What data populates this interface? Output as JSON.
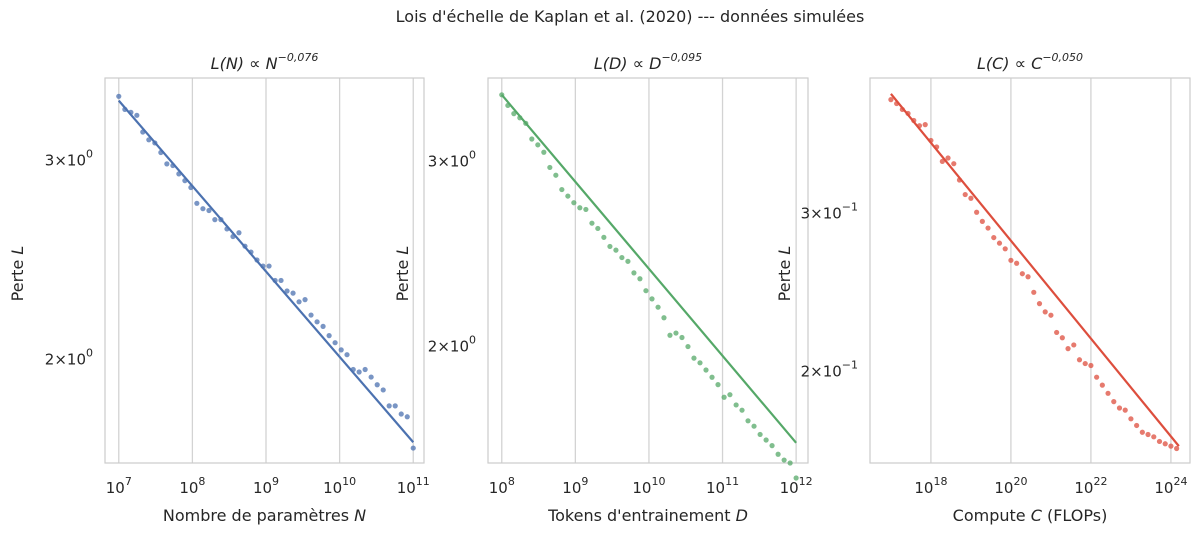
{
  "suptitle": "Lois d'échelle de Kaplan et al. (2020) --- données simulées",
  "chart_data": [
    {
      "type": "scatter",
      "title_base": "L(N) ∝ N",
      "title_exp": "−0,076",
      "xlabel_main": "Nombre de paramètres ",
      "xlabel_var": "N",
      "xlabel_suffix": "",
      "ylabel_main": "Perte ",
      "ylabel_var": "L",
      "xscale": "log",
      "yscale": "log",
      "xlim": [
        6500000.0,
        140000000000.0
      ],
      "ylim": [
        1.62,
        3.55
      ],
      "grid": true,
      "color": "#4c72b0",
      "xticks": [
        {
          "value": 10000000.0,
          "base": "10",
          "exp": "7"
        },
        {
          "value": 100000000.0,
          "base": "10",
          "exp": "8"
        },
        {
          "value": 1000000000.0,
          "base": "10",
          "exp": "9"
        },
        {
          "value": 10000000000.0,
          "base": "10",
          "exp": "10"
        },
        {
          "value": 100000000000.0,
          "base": "10",
          "exp": "11"
        }
      ],
      "yticks": [
        {
          "value": 3.0,
          "mant": "3×10",
          "exp": "0"
        },
        {
          "value": 2.0,
          "mant": "2×10",
          "exp": "0"
        }
      ],
      "fit": {
        "x": [
          10000000.0,
          100000000000.0
        ],
        "y": [
          3.39,
          1.69
        ]
      },
      "series": [
        {
          "type": "scatter",
          "x": [
            10000000.0,
            12100000.0,
            14600000.0,
            17600000.0,
            21200000.0,
            25600000.0,
            30900000.0,
            37300000.0,
            45000000.0,
            54300000.0,
            65500000.0,
            79100000.0,
            95400000.0,
            115000000.0,
            139000000.0,
            168000000.0,
            202000000.0,
            244000000.0,
            295000000.0,
            356000000.0,
            429000000.0,
            518000000.0,
            625000000.0,
            754000000.0,
            910000000.0,
            1100000000.0,
            1330000000.0,
            1600000000.0,
            1930000000.0,
            2330000000.0,
            2810000000.0,
            3390000000.0,
            4090000000.0,
            4940000000.0,
            5960000000.0,
            7200000000.0,
            8680000000.0,
            10500000000.0,
            12600000000.0,
            15300000000.0,
            18400000000.0,
            22200000000.0,
            26800000000.0,
            32400000000.0,
            39100000000.0,
            47100000000.0,
            56900000000.0,
            68700000000.0,
            82900000000.0,
            100000000000.0
          ],
          "y": [
            3.42,
            3.33,
            3.31,
            3.29,
            3.18,
            3.13,
            3.11,
            3.05,
            2.98,
            2.97,
            2.92,
            2.88,
            2.84,
            2.75,
            2.72,
            2.71,
            2.66,
            2.66,
            2.61,
            2.57,
            2.59,
            2.52,
            2.49,
            2.45,
            2.42,
            2.42,
            2.35,
            2.35,
            2.3,
            2.29,
            2.25,
            2.26,
            2.19,
            2.16,
            2.14,
            2.1,
            2.07,
            2.04,
            2.02,
            1.96,
            1.95,
            1.96,
            1.93,
            1.9,
            1.88,
            1.82,
            1.82,
            1.79,
            1.78,
            1.67
          ]
        }
      ]
    },
    {
      "type": "scatter",
      "title_base": "L(D) ∝ D",
      "title_exp": "−0,095",
      "xlabel_main": "Tokens d'entrainement ",
      "xlabel_var": "D",
      "xlabel_suffix": "",
      "ylabel_main": "Perte ",
      "ylabel_var": "L",
      "xscale": "log",
      "yscale": "log",
      "xlim": [
        65000000.0,
        1450000000000.0
      ],
      "ylim": [
        1.55,
        3.6
      ],
      "grid": true,
      "color": "#55a868",
      "xticks": [
        {
          "value": 100000000.0,
          "base": "10",
          "exp": "8"
        },
        {
          "value": 1000000000.0,
          "base": "10",
          "exp": "9"
        },
        {
          "value": 10000000000.0,
          "base": "10",
          "exp": "10"
        },
        {
          "value": 100000000000.0,
          "base": "10",
          "exp": "11"
        },
        {
          "value": 1000000000000.0,
          "base": "10",
          "exp": "12"
        }
      ],
      "yticks": [
        {
          "value": 3.0,
          "mant": "3×10",
          "exp": "0"
        },
        {
          "value": 2.0,
          "mant": "2×10",
          "exp": "0"
        }
      ],
      "fit": {
        "x": [
          100000000.0,
          1000000000000.0
        ],
        "y": [
          3.47,
          1.62
        ]
      },
      "series": [
        {
          "type": "scatter",
          "x": [
            100000000.0,
            121000000.0,
            146000000.0,
            176000000.0,
            212000000.0,
            256000000.0,
            309000000.0,
            373000000.0,
            450000000.0,
            543000000.0,
            655000000.0,
            791000000.0,
            954000000.0,
            1150000000.0,
            1390000000.0,
            1680000000.0,
            2020000000.0,
            2440000000.0,
            2950000000.0,
            3560000000.0,
            4290000000.0,
            5180000000.0,
            6250000000.0,
            7540000000.0,
            9100000000.0,
            11000000000.0,
            13300000000.0,
            16000000000.0,
            19300000000.0,
            23300000000.0,
            28100000000.0,
            33900000000.0,
            40900000000.0,
            49400000000.0,
            59600000000.0,
            72000000000.0,
            86800000000.0,
            105000000000.0,
            126000000000.0,
            153000000000.0,
            184000000000.0,
            222000000000.0,
            268000000000.0,
            324000000000.0,
            391000000000.0,
            471000000000.0,
            569000000000.0,
            687000000000.0,
            829000000000.0,
            1000000000000.0
          ],
          "y": [
            3.47,
            3.39,
            3.33,
            3.3,
            3.26,
            3.15,
            3.11,
            3.06,
            2.96,
            2.91,
            2.82,
            2.78,
            2.74,
            2.71,
            2.7,
            2.62,
            2.59,
            2.54,
            2.49,
            2.47,
            2.43,
            2.41,
            2.35,
            2.32,
            2.26,
            2.22,
            2.18,
            2.13,
            2.05,
            2.06,
            2.04,
            2.0,
            1.95,
            1.93,
            1.9,
            1.87,
            1.84,
            1.79,
            1.8,
            1.76,
            1.74,
            1.7,
            1.68,
            1.65,
            1.63,
            1.61,
            1.58,
            1.56,
            1.55,
            1.5
          ]
        }
      ]
    },
    {
      "type": "scatter",
      "title_base": "L(C) ∝ C",
      "title_exp": "−0,050",
      "xlabel_main": "Compute ",
      "xlabel_var": "C",
      "xlabel_suffix": " (FLOPs)",
      "ylabel_main": "Perte ",
      "ylabel_var": "L",
      "xscale": "log",
      "yscale": "log",
      "xlim": [
        3e+16,
        3e+24
      ],
      "ylim": [
        0.158,
        0.425
      ],
      "grid": true,
      "color": "#dd4e3d",
      "xticks": [
        {
          "value": 1e+18,
          "base": "10",
          "exp": "18"
        },
        {
          "value": 1e+20,
          "base": "10",
          "exp": "20"
        },
        {
          "value": 1e+22,
          "base": "10",
          "exp": "22"
        },
        {
          "value": 1e+24,
          "base": "10",
          "exp": "24"
        }
      ],
      "yticks": [
        {
          "value": 0.3,
          "mant": "3×10",
          "exp": "−1"
        },
        {
          "value": 0.2,
          "mant": "2×10",
          "exp": "−1"
        }
      ],
      "fit": {
        "x": [
          1e+17,
          1.58e+24
        ],
        "y": [
          0.408,
          0.165
        ]
      },
      "series": [
        {
          "type": "scatter",
          "x": [
            1e+17,
            1.39e+17,
            1.93e+17,
            2.68e+17,
            3.73e+17,
            5.18e+17,
            7.2e+17,
            1e+18,
            1.39e+18,
            1.93e+18,
            2.68e+18,
            3.73e+18,
            5.18e+18,
            7.2e+18,
            1e+19,
            1.39e+19,
            1.93e+19,
            2.68e+19,
            3.73e+19,
            5.18e+19,
            7.2e+19,
            1e+20,
            1.39e+20,
            1.93e+20,
            2.68e+20,
            3.73e+20,
            5.18e+20,
            7.2e+20,
            1e+21,
            1.39e+21,
            1.93e+21,
            2.68e+21,
            3.73e+21,
            5.18e+21,
            7.2e+21,
            1e+22,
            1.39e+22,
            1.93e+22,
            2.68e+22,
            3.73e+22,
            5.18e+22,
            7.2e+22,
            1e+23,
            1.39e+23,
            1.93e+23,
            2.68e+23,
            3.73e+23,
            5.18e+23,
            7.2e+23,
            1e+24,
            1.39e+24
          ],
          "y": [
            0.402,
            0.398,
            0.392,
            0.388,
            0.381,
            0.376,
            0.377,
            0.362,
            0.356,
            0.343,
            0.346,
            0.341,
            0.327,
            0.315,
            0.312,
            0.301,
            0.294,
            0.289,
            0.282,
            0.278,
            0.274,
            0.266,
            0.264,
            0.257,
            0.255,
            0.245,
            0.238,
            0.233,
            0.231,
            0.221,
            0.218,
            0.212,
            0.214,
            0.206,
            0.204,
            0.203,
            0.197,
            0.193,
            0.189,
            0.185,
            0.182,
            0.181,
            0.177,
            0.174,
            0.171,
            0.17,
            0.169,
            0.167,
            0.166,
            0.165,
            0.164
          ]
        }
      ]
    }
  ]
}
